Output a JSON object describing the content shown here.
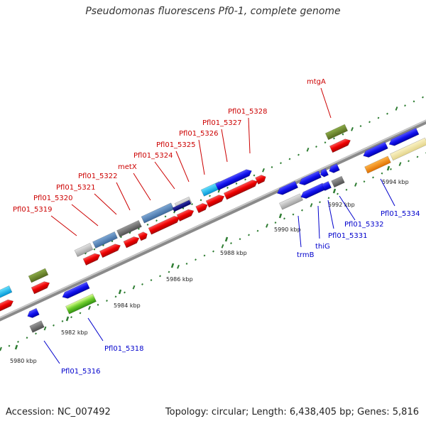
{
  "title": "Pseudomonas fluorescens Pf0-1, complete genome",
  "footer": {
    "accession": "Accession: NC_007492",
    "topology": "Topology: circular; Length: 6,438,405 bp; Genes: 5,816"
  },
  "colors": {
    "backbone": "#8c8c8c",
    "forward_label": "#cc0000",
    "reverse_label": "#0000cc",
    "tick": "#2e7d32"
  },
  "tick_labels": [
    {
      "text": "5980 kbp"
    },
    {
      "text": "5982 kbp"
    },
    {
      "text": "5984 kbp"
    },
    {
      "text": "5986 kbp"
    },
    {
      "text": "5988 kbp"
    },
    {
      "text": "5990 kbp"
    },
    {
      "text": "5992 kbp"
    },
    {
      "text": "5994 kbp"
    }
  ],
  "gene_labels": [
    {
      "text": "Pfl01_5319",
      "strand": "forward"
    },
    {
      "text": "Pfl01_5320",
      "strand": "forward"
    },
    {
      "text": "Pfl01_5321",
      "strand": "forward"
    },
    {
      "text": "Pfl01_5322",
      "strand": "forward"
    },
    {
      "text": "metX",
      "strand": "forward"
    },
    {
      "text": "Pfl01_5324",
      "strand": "forward"
    },
    {
      "text": "Pfl01_5325",
      "strand": "forward"
    },
    {
      "text": "Pfl01_5326",
      "strand": "forward"
    },
    {
      "text": "Pfl01_5327",
      "strand": "forward"
    },
    {
      "text": "Pfl01_5328",
      "strand": "forward"
    },
    {
      "text": "mtgA",
      "strand": "forward"
    },
    {
      "text": "Pfl01_5316",
      "strand": "reverse"
    },
    {
      "text": "Pfl01_5318",
      "strand": "reverse"
    },
    {
      "text": "trmB",
      "strand": "reverse"
    },
    {
      "text": "thiG",
      "strand": "reverse"
    },
    {
      "text": "Pfl01_5331",
      "strand": "reverse"
    },
    {
      "text": "Pfl01_5332",
      "strand": "reverse"
    },
    {
      "text": "Pfl01_5334",
      "strand": "reverse"
    }
  ]
}
